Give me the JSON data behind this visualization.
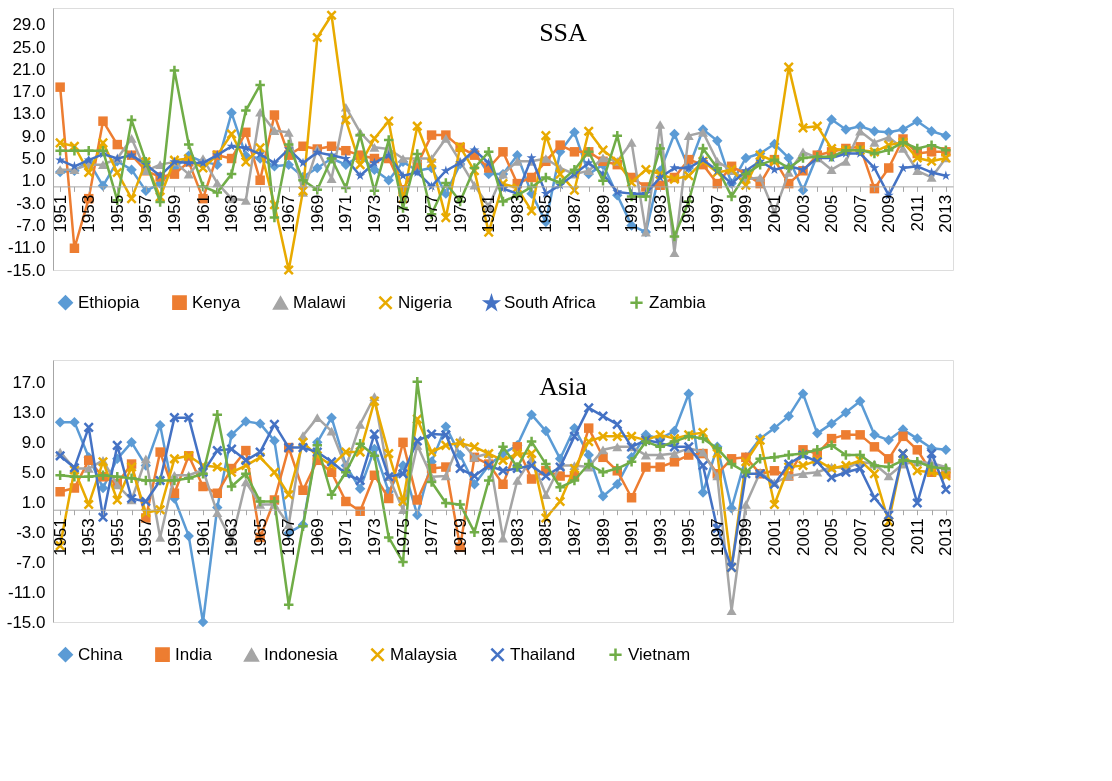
{
  "chart_data": [
    {
      "type": "line",
      "title": "SSA",
      "categories": [
        "1951",
        null,
        "1953",
        null,
        "1955",
        null,
        "1957",
        null,
        "1959",
        null,
        "1961",
        null,
        "1963",
        null,
        "1965",
        null,
        "1967",
        null,
        "1969",
        null,
        "1971",
        null,
        "1973",
        null,
        "1975",
        null,
        "1977",
        null,
        "1979",
        null,
        "1981",
        null,
        "1983",
        null,
        "1985",
        null,
        "1987",
        null,
        "1989",
        null,
        "1991",
        null,
        "1993",
        null,
        "1995",
        null,
        "1997",
        null,
        "1999",
        null,
        "2001",
        null,
        "2003",
        null,
        "2005",
        null,
        "2007",
        null,
        "2009",
        null,
        "2011",
        null,
        "2013"
      ],
      "ylim": [
        -15,
        32
      ],
      "yticks": [
        {
          "value": -15,
          "label": "-15.0"
        },
        {
          "value": -11,
          "label": "-11.0"
        },
        {
          "value": -7,
          "label": "-7.0"
        },
        {
          "value": -3,
          "label": "-3.0"
        },
        {
          "value": 1,
          "label": "1.0"
        },
        {
          "value": 5,
          "label": "5.0"
        },
        {
          "value": 9,
          "label": "9.0"
        },
        {
          "value": 13,
          "label": "13.0"
        },
        {
          "value": 17,
          "label": "17.0"
        },
        {
          "value": 21,
          "label": "21.0"
        },
        {
          "value": 25,
          "label": "25.0"
        },
        {
          "value": 29,
          "label": "29.0"
        }
      ],
      "grid": false,
      "legend": "bottom",
      "line_style": "solid",
      "series": [
        {
          "name": "Ethiopia",
          "color": "#5B9BD5",
          "marker": "diamond",
          "values": [
            2.6,
            2.8,
            4.5,
            0.1,
            4.5,
            3.0,
            -0.8,
            0.5,
            3.3,
            5.5,
            4.4,
            3.9,
            13.2,
            5.5,
            5.0,
            3.6,
            3.9,
            1.7,
            3.3,
            5.0,
            3.9,
            5.5,
            3.0,
            1.1,
            4.4,
            2.8,
            3.3,
            -1.3,
            4.0,
            6.2,
            2.2,
            2.2,
            5.6,
            -1.3,
            -6.4,
            6.2,
            9.7,
            2.2,
            3.9,
            -1.6,
            -7.0,
            -8.2,
            2.8,
            9.4,
            3.3,
            10.2,
            8.2,
            0.5,
            5.1,
            5.9,
            7.6,
            5.1,
            -0.7,
            5.6,
            12.0,
            10.2,
            10.8,
            9.9,
            9.7,
            10.2,
            11.7,
            9.9,
            9.1
          ]
        },
        {
          "name": "Kenya",
          "color": "#ED7D31",
          "marker": "square",
          "values": [
            17.8,
            -11.1,
            -2.2,
            11.7,
            7.5,
            5.6,
            2.8,
            1.7,
            2.2,
            4.4,
            -2.2,
            5.6,
            5.0,
            9.7,
            1.1,
            12.8,
            5.6,
            7.2,
            6.7,
            7.2,
            6.4,
            5.6,
            5.0,
            5.0,
            -0.6,
            3.9,
            9.2,
            9.2,
            7.0,
            5.6,
            3.3,
            6.2,
            0.5,
            1.6,
            4.5,
            7.4,
            6.2,
            6.2,
            4.5,
            3.9,
            1.6,
            -0.1,
            0.2,
            1.6,
            4.8,
            3.9,
            0.5,
            3.6,
            2.2,
            0.5,
            4.8,
            0.5,
            2.8,
            5.6,
            6.2,
            6.8,
            7.1,
            -0.4,
            3.3,
            8.5,
            5.9,
            6.2,
            6.2
          ]
        },
        {
          "name": "Malawi",
          "color": "#A5A5A5",
          "marker": "triangle",
          "values": [
            3.0,
            3.0,
            3.9,
            3.9,
            5.0,
            8.6,
            2.8,
            3.9,
            4.4,
            2.2,
            5.0,
            0.6,
            -2.2,
            -2.5,
            13.3,
            10.0,
            9.7,
            -1.1,
            6.7,
            1.4,
            14.2,
            9.7,
            7.0,
            6.7,
            5.0,
            5.0,
            5.0,
            8.6,
            4.5,
            0.2,
            -3.6,
            2.2,
            4.5,
            4.5,
            5.0,
            3.3,
            2.2,
            2.8,
            5.1,
            4.5,
            7.9,
            -8.2,
            11.1,
            -11.9,
            9.1,
            9.7,
            4.5,
            2.8,
            1.3,
            1.6,
            -4.7,
            2.5,
            6.2,
            5.1,
            3.0,
            4.5,
            9.9,
            7.9,
            8.8,
            6.8,
            2.8,
            1.6,
            5.1
          ]
        },
        {
          "name": "Nigeria",
          "color": "#E8AA00",
          "marker": "cross",
          "values": [
            7.8,
            7.2,
            2.5,
            7.8,
            2.5,
            -2.2,
            4.4,
            -1.9,
            4.7,
            5.0,
            3.3,
            5.6,
            9.4,
            4.4,
            6.9,
            -3.3,
            -15.0,
            -0.8,
            26.7,
            30.7,
            11.9,
            3.9,
            8.6,
            11.7,
            -2.2,
            10.8,
            4.2,
            -5.6,
            7.1,
            2.8,
            -8.2,
            0.5,
            -0.3,
            -4.4,
            9.1,
            2.2,
            -0.7,
            9.9,
            6.5,
            4.5,
            0.7,
            3.0,
            2.2,
            1.3,
            1.9,
            4.5,
            2.5,
            3.0,
            0.2,
            5.6,
            4.5,
            21.4,
            10.5,
            10.8,
            6.8,
            6.5,
            6.5,
            6.2,
            7.4,
            7.9,
            5.1,
            4.5,
            5.1
          ]
        },
        {
          "name": "South Africa",
          "color": "#4472C4",
          "marker": "star",
          "values": [
            4.7,
            3.6,
            4.7,
            5.8,
            5.0,
            5.6,
            3.9,
            1.9,
            4.4,
            4.2,
            4.2,
            5.6,
            7.2,
            6.9,
            5.8,
            4.2,
            6.7,
            4.2,
            6.1,
            5.6,
            5.0,
            1.9,
            4.2,
            5.6,
            1.9,
            2.5,
            0.0,
            2.8,
            4.2,
            6.5,
            4.2,
            -0.4,
            -1.3,
            5.1,
            -1.3,
            0.2,
            2.2,
            4.2,
            2.2,
            -1.0,
            -1.3,
            -1.3,
            1.6,
            3.3,
            3.3,
            4.8,
            2.8,
            0.5,
            2.8,
            4.5,
            3.0,
            3.6,
            3.0,
            5.1,
            5.1,
            5.9,
            5.9,
            3.3,
            -1.6,
            3.3,
            3.6,
            2.5,
            1.9
          ]
        },
        {
          "name": "Zambia",
          "color": "#70AD47",
          "marker": "plus",
          "values": [
            6.4,
            6.4,
            6.4,
            6.4,
            -2.5,
            11.9,
            4.4,
            -2.8,
            20.8,
            7.5,
            0.0,
            -1.1,
            2.2,
            13.6,
            18.2,
            -5.6,
            7.5,
            1.1,
            -0.6,
            5.0,
            -0.3,
            9.2,
            -0.8,
            8.3,
            -3.9,
            5.8,
            -5.0,
            0.6,
            -2.7,
            3.3,
            6.2,
            -2.7,
            -1.6,
            -0.1,
            1.6,
            0.7,
            3.0,
            6.2,
            1.0,
            9.1,
            -1.8,
            -1.8,
            6.8,
            -9.0,
            -2.7,
            6.8,
            3.3,
            -1.8,
            2.2,
            3.9,
            4.8,
            3.3,
            5.1,
            5.3,
            5.3,
            6.5,
            6.5,
            5.9,
            6.5,
            7.9,
            6.8,
            7.4,
            6.5
          ]
        }
      ]
    },
    {
      "type": "line",
      "title": "Asia",
      "categories": [
        "1951",
        null,
        "1953",
        null,
        "1955",
        null,
        "1957",
        null,
        "1959",
        null,
        "1961",
        null,
        "1963",
        null,
        "1965",
        null,
        "1967",
        null,
        "1969",
        null,
        "1971",
        null,
        "1973",
        null,
        "1975",
        null,
        "1977",
        null,
        "1979",
        null,
        "1981",
        null,
        "1983",
        null,
        "1985",
        null,
        "1987",
        null,
        "1989",
        null,
        "1991",
        null,
        "1993",
        null,
        "1995",
        null,
        "1997",
        null,
        "1999",
        null,
        "2001",
        null,
        "2003",
        null,
        "2005",
        null,
        "2007",
        null,
        "2009",
        null,
        "2011",
        null,
        "2013"
      ],
      "ylim": [
        -15,
        20
      ],
      "yticks": [
        {
          "value": -15,
          "label": "-15.0"
        },
        {
          "value": -11,
          "label": "-11.0"
        },
        {
          "value": -7,
          "label": "-7.0"
        },
        {
          "value": -3,
          "label": "-3.0"
        },
        {
          "value": 1,
          "label": "1.0"
        },
        {
          "value": 5,
          "label": "5.0"
        },
        {
          "value": 9,
          "label": "9.0"
        },
        {
          "value": 13,
          "label": "13.0"
        },
        {
          "value": 17,
          "label": "17.0"
        }
      ],
      "grid": false,
      "legend": "bottom",
      "line_style": "solid",
      "series": [
        {
          "name": "China",
          "color": "#5B9BD5",
          "marker": "diamond",
          "values": [
            11.7,
            11.7,
            7.0,
            2.9,
            6.8,
            9.0,
            5.9,
            11.3,
            1.5,
            -3.5,
            -15.0,
            0.3,
            10.0,
            11.8,
            11.5,
            9.2,
            -3.1,
            -2.0,
            9.0,
            12.3,
            5.9,
            2.8,
            8.1,
            2.4,
            5.9,
            -0.7,
            6.4,
            11.1,
            7.3,
            3.4,
            5.9,
            7.5,
            8.6,
            12.7,
            10.5,
            6.8,
            10.9,
            7.3,
            1.8,
            3.4,
            7.0,
            10.0,
            9.5,
            10.5,
            15.5,
            2.3,
            8.4,
            0.2,
            7.0,
            9.5,
            10.9,
            12.5,
            15.5,
            10.2,
            11.5,
            13.0,
            14.5,
            10.0,
            9.3,
            10.7,
            9.5,
            8.2,
            8.0
          ]
        },
        {
          "name": "India",
          "color": "#ED7D31",
          "marker": "square",
          "values": [
            2.4,
            2.9,
            6.6,
            4.4,
            3.5,
            6.1,
            -1.1,
            7.7,
            2.2,
            7.2,
            3.1,
            2.2,
            5.5,
            7.9,
            -3.7,
            1.3,
            8.3,
            2.6,
            6.6,
            5.0,
            1.1,
            -0.2,
            4.6,
            1.5,
            9.0,
            1.3,
            5.5,
            5.7,
            -5.0,
            7.0,
            6.1,
            3.4,
            8.4,
            4.1,
            5.2,
            4.5,
            4.5,
            10.9,
            7.0,
            5.2,
            1.6,
            5.7,
            5.7,
            6.4,
            7.3,
            7.5,
            4.8,
            6.8,
            7.0,
            4.8,
            5.2,
            4.5,
            8.0,
            7.5,
            9.5,
            10.0,
            10.0,
            8.4,
            6.8,
            9.8,
            8.0,
            5.0,
            4.8
          ]
        },
        {
          "name": "Indonesia",
          "color": "#A5A5A5",
          "marker": "triangle",
          "values": [
            7.7,
            5.5,
            5.5,
            6.6,
            3.3,
            1.3,
            6.8,
            -3.7,
            4.6,
            4.6,
            5.3,
            -0.4,
            -4.2,
            3.7,
            0.7,
            0.7,
            -2.0,
            9.9,
            12.3,
            10.5,
            5.7,
            11.4,
            15.1,
            4.4,
            0.0,
            8.6,
            4.4,
            4.5,
            9.3,
            7.0,
            7.5,
            -3.8,
            3.9,
            6.8,
            2.0,
            5.9,
            5.9,
            5.7,
            8.0,
            8.4,
            8.4,
            7.3,
            7.3,
            7.5,
            8.2,
            7.7,
            4.5,
            -13.5,
            0.7,
            5.0,
            3.6,
            4.5,
            4.8,
            5.0,
            5.7,
            5.5,
            6.4,
            6.1,
            4.5,
            6.1,
            6.4,
            6.2,
            5.7
          ]
        },
        {
          "name": "Malaysia",
          "color": "#E8AA00",
          "marker": "cross",
          "values": [
            -4.8,
            5.3,
            0.7,
            6.4,
            1.3,
            5.7,
            -0.4,
            0.0,
            6.8,
            7.2,
            5.9,
            5.7,
            5.0,
            5.9,
            7.0,
            5.0,
            2.0,
            9.0,
            7.2,
            5.9,
            7.7,
            7.7,
            14.5,
            7.5,
            1.1,
            12.1,
            7.7,
            8.6,
            8.9,
            8.4,
            7.5,
            6.6,
            7.5,
            7.5,
            -1.1,
            1.1,
            5.5,
            9.1,
            9.8,
            9.8,
            9.8,
            9.3,
            10.0,
            9.5,
            10.0,
            10.3,
            7.5,
            -7.7,
            6.4,
            9.3,
            0.7,
            5.7,
            5.9,
            6.6,
            5.5,
            5.9,
            6.6,
            4.8,
            -1.6,
            7.5,
            5.2,
            5.0,
            4.5
          ]
        },
        {
          "name": "Thailand",
          "color": "#4472C4",
          "marker": "cross",
          "values": [
            7.2,
            5.6,
            11.0,
            -1.0,
            8.6,
            1.5,
            1.1,
            3.9,
            12.3,
            12.3,
            5.0,
            7.9,
            8.1,
            6.6,
            7.7,
            11.4,
            8.3,
            8.3,
            7.7,
            6.4,
            4.8,
            3.9,
            10.1,
            4.4,
            4.8,
            9.2,
            10.1,
            10.0,
            5.5,
            4.5,
            5.9,
            5.2,
            5.5,
            5.9,
            4.5,
            5.7,
            9.8,
            13.6,
            12.5,
            11.4,
            8.4,
            9.3,
            8.9,
            8.4,
            8.4,
            5.9,
            -2.5,
            -7.7,
            4.8,
            4.8,
            3.4,
            6.1,
            7.3,
            6.4,
            4.3,
            5.0,
            5.5,
            1.6,
            -0.7,
            7.5,
            0.9,
            7.5,
            2.7
          ]
        },
        {
          "name": "Vietnam",
          "color": "#70AD47",
          "marker": "plus",
          "values": [
            4.6,
            4.4,
            4.4,
            4.6,
            4.4,
            4.2,
            3.9,
            3.9,
            3.9,
            4.2,
            4.8,
            12.7,
            3.1,
            4.8,
            1.1,
            1.1,
            -12.7,
            -2.2,
            8.6,
            2.0,
            5.0,
            8.8,
            7.2,
            -3.7,
            -7.0,
            17.1,
            3.7,
            0.9,
            0.7,
            -3.0,
            3.9,
            8.4,
            5.7,
            9.1,
            6.1,
            3.0,
            3.9,
            6.1,
            5.0,
            5.5,
            6.4,
            9.1,
            8.4,
            9.1,
            9.8,
            9.5,
            8.2,
            6.1,
            5.0,
            6.8,
            7.0,
            7.3,
            7.5,
            8.0,
            8.6,
            7.3,
            7.3,
            5.9,
            5.7,
            6.6,
            6.4,
            5.7,
            5.5
          ]
        }
      ]
    }
  ]
}
